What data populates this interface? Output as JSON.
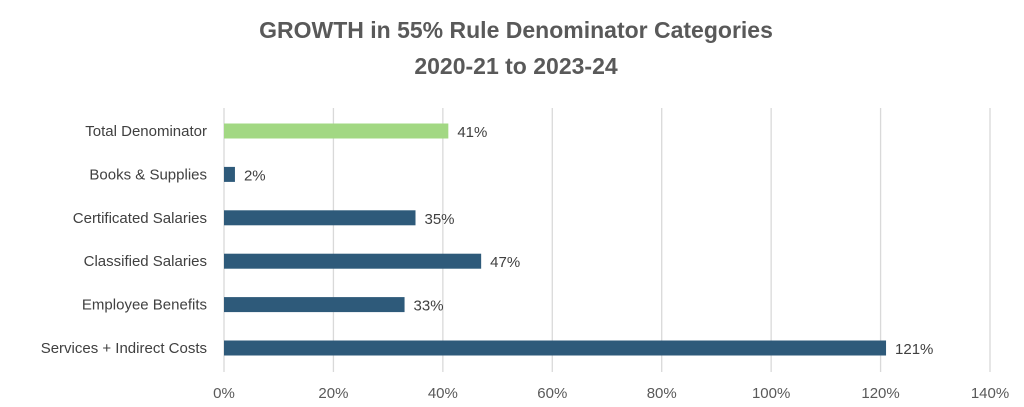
{
  "chart_data": {
    "type": "bar",
    "orientation": "horizontal",
    "title": "GROWTH in 55% Rule Denominator Categories",
    "subtitle": "2020-21 to 2023-24",
    "categories": [
      "Total Denominator",
      "Books & Supplies",
      "Certificated Salaries",
      "Classified Salaries",
      "Employee Benefits",
      "Services + Indirect Costs"
    ],
    "values": [
      41,
      2,
      35,
      47,
      33,
      121
    ],
    "value_labels": [
      "41%",
      "2%",
      "35%",
      "47%",
      "33%",
      "121%"
    ],
    "bar_colors": [
      "#a2d883",
      "#2e5a7a",
      "#2e5a7a",
      "#2e5a7a",
      "#2e5a7a",
      "#2e5a7a"
    ],
    "xlim": [
      0,
      140
    ],
    "xticks": [
      0,
      20,
      40,
      60,
      80,
      100,
      120,
      140
    ],
    "xtick_labels": [
      "0%",
      "20%",
      "40%",
      "60%",
      "80%",
      "100%",
      "120%",
      "140%"
    ],
    "xlabel": "",
    "ylabel": "",
    "grid": "vertical",
    "legend": "none"
  }
}
